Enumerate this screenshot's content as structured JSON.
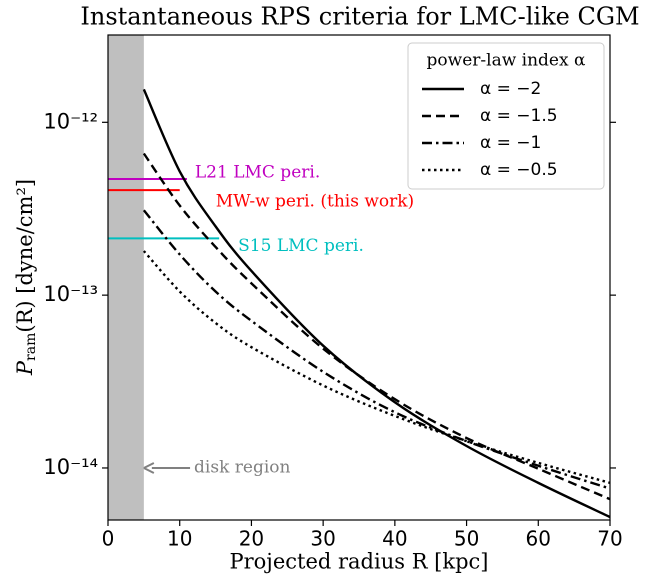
{
  "chart_data": {
    "type": "line",
    "title": "Instantaneous RPS criteria for LMC-like CGM",
    "x_label": "Projected radius R [kpc]",
    "y_label": [
      "P",
      "ram",
      "(R) [dyne/cm²]"
    ],
    "yscale": "log",
    "xlim": [
      0,
      70
    ],
    "ylim": [
      5e-15,
      3.2e-12
    ],
    "xticks": [
      0,
      10,
      20,
      30,
      40,
      50,
      60,
      70
    ],
    "yticks": [
      {
        "value": 1e-14,
        "label": "10⁻¹⁴"
      },
      {
        "value": 1e-13,
        "label": "10⁻¹³"
      },
      {
        "value": 1e-12,
        "label": "10⁻¹²"
      }
    ],
    "x": [
      5,
      10,
      15,
      20,
      30,
      40,
      50,
      60,
      70
    ],
    "legend_title": "power-law index α",
    "legend_position": "upper right",
    "series": [
      {
        "name": "α = −2",
        "color": "#000000",
        "dash": "solid",
        "values": [
          1.55e-12,
          5.2e-13,
          2.5e-13,
          1.38e-13,
          5.1e-14,
          2.4e-14,
          1.34e-14,
          8.2e-15,
          5.2e-15
        ]
      },
      {
        "name": "α = −1.5",
        "color": "#000000",
        "dash": "dashed",
        "values": [
          6.6e-13,
          3.3e-13,
          1.9e-13,
          1.17e-13,
          4.9e-14,
          2.5e-14,
          1.49e-14,
          9.9e-15,
          6.6e-15
        ]
      },
      {
        "name": "α = −1",
        "color": "#000000",
        "dash": "dashdot",
        "values": [
          3.1e-13,
          1.72e-13,
          1.05e-13,
          7.1e-14,
          3.6e-14,
          2.1e-14,
          1.43e-14,
          1.03e-14,
          7.6e-15
        ]
      },
      {
        "name": "α = −0.5",
        "color": "#000000",
        "dash": "dotted",
        "values": [
          1.8e-13,
          1.05e-13,
          6.9e-14,
          5e-14,
          3e-14,
          2e-14,
          1.43e-14,
          1.07e-14,
          8.2e-15
        ]
      }
    ],
    "reference_lines": [
      {
        "label": "L21 LMC peri.",
        "color": "#c000c0",
        "y": 4.7e-13,
        "x": [
          0,
          11
        ]
      },
      {
        "label": "MW-w peri. (this work)",
        "color": "#ff0000",
        "y": 4.05e-13,
        "x": [
          0,
          10
        ]
      },
      {
        "label": "S15 LMC peri.",
        "color": "#00bfbf",
        "y": 2.13e-13,
        "x": [
          0,
          15.5
        ]
      }
    ],
    "shaded_region": {
      "x": [
        0,
        5
      ],
      "color": "#bfbfbf"
    },
    "annotation": {
      "text": "disk region",
      "color": "#808080",
      "xy": [
        5,
        1e-14
      ],
      "xytext": [
        12,
        1e-14
      ]
    }
  }
}
